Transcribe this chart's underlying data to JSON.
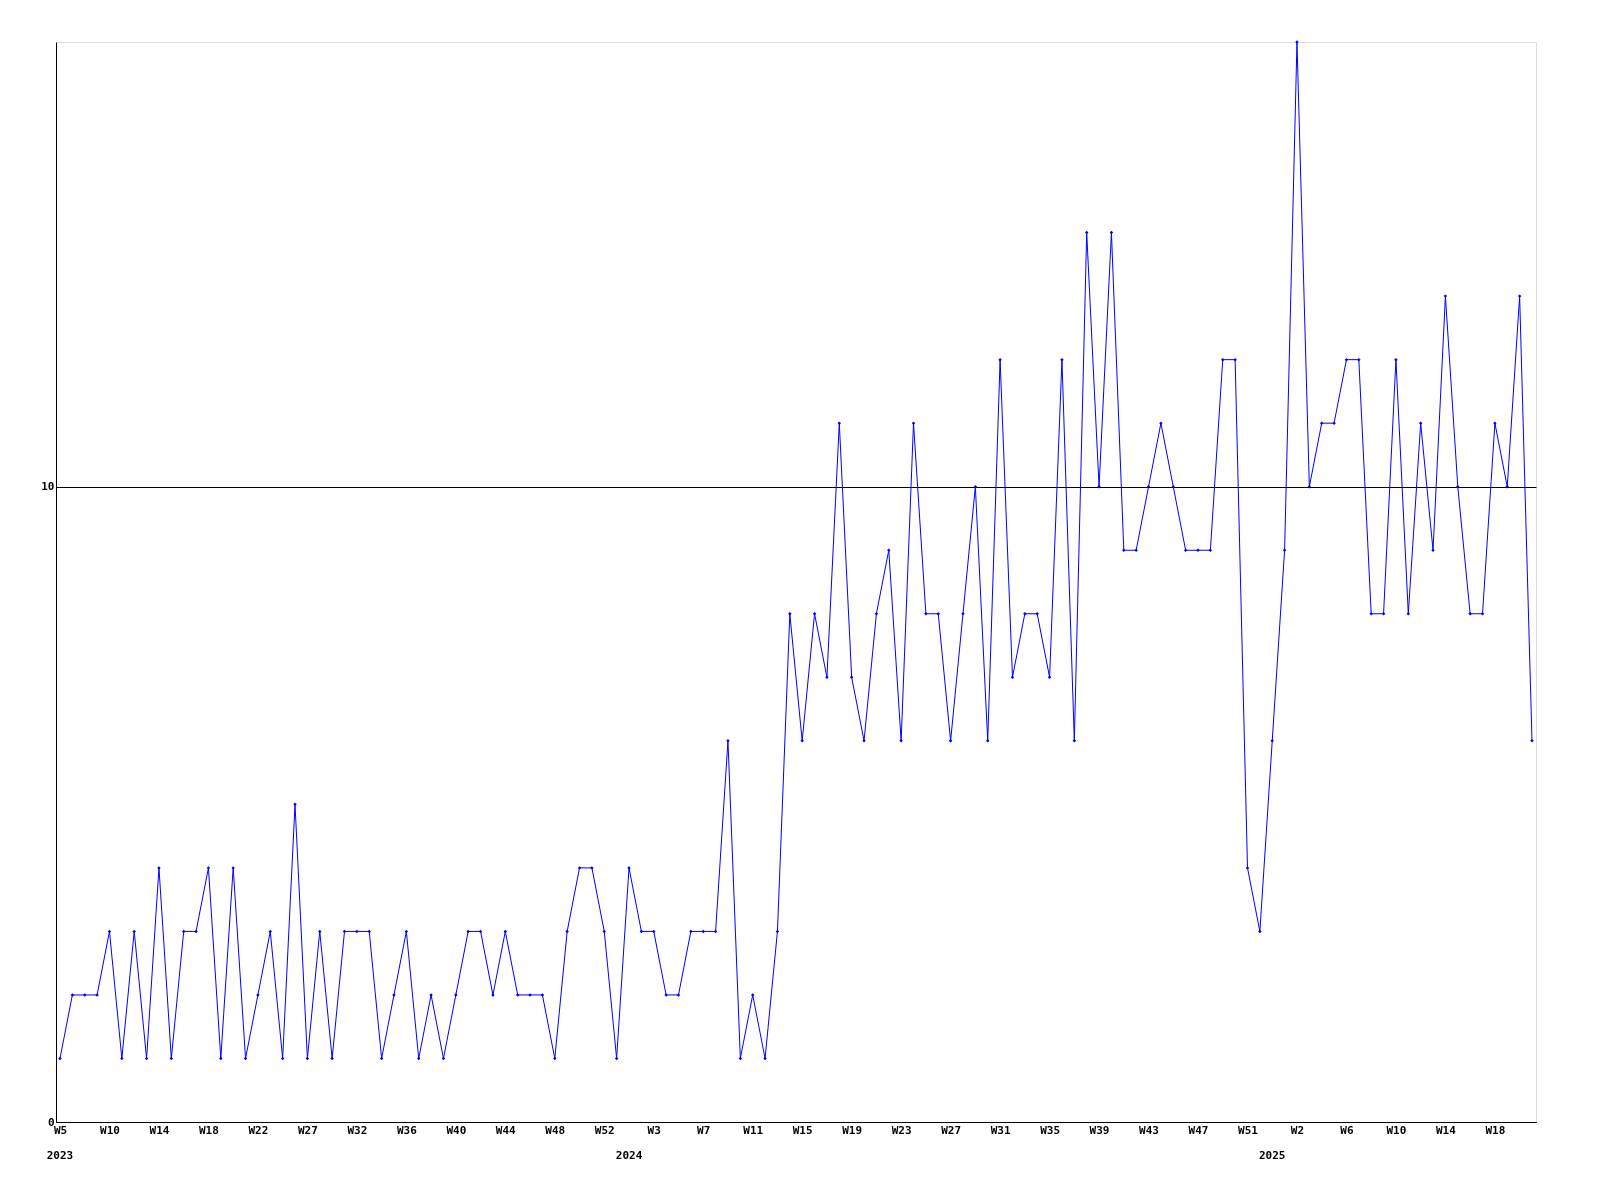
{
  "chart_data": {
    "type": "line",
    "categories": [
      "W5",
      null,
      null,
      null,
      "W10",
      null,
      null,
      null,
      "W14",
      null,
      null,
      null,
      "W18",
      null,
      null,
      null,
      "W22",
      null,
      null,
      null,
      "W27",
      null,
      null,
      null,
      "W32",
      null,
      null,
      null,
      "W36",
      null,
      null,
      null,
      "W40",
      null,
      null,
      null,
      "W44",
      null,
      null,
      null,
      "W48",
      null,
      null,
      null,
      "W52",
      null,
      null,
      null,
      "W3",
      null,
      null,
      null,
      "W7",
      null,
      null,
      null,
      "W11",
      null,
      null,
      null,
      "W15",
      null,
      null,
      null,
      "W19",
      null,
      null,
      null,
      "W23",
      null,
      null,
      null,
      "W27",
      null,
      null,
      null,
      "W31",
      null,
      null,
      null,
      "W35",
      null,
      null,
      null,
      "W39",
      null,
      null,
      null,
      "W43",
      null,
      null,
      null,
      "W47",
      null,
      null,
      null,
      "W51",
      null,
      null,
      null,
      "W2",
      null,
      null,
      null,
      "W6",
      null,
      null,
      null,
      "W10",
      null,
      null,
      null,
      "W14",
      null,
      null,
      null,
      "W18",
      null,
      null,
      null
    ],
    "series": [
      {
        "color": "#0000ff",
        "values": [
          1,
          2,
          2,
          2,
          3,
          1,
          3,
          1,
          4,
          1,
          3,
          3,
          4,
          1,
          4,
          1,
          2,
          3,
          1,
          5,
          1,
          3,
          1,
          3,
          3,
          3,
          1,
          2,
          3,
          1,
          2,
          1,
          2,
          3,
          3,
          2,
          3,
          2,
          2,
          2,
          1,
          3,
          4,
          4,
          3,
          1,
          4,
          3,
          3,
          2,
          2,
          3,
          3,
          3,
          6,
          1,
          2,
          1,
          3,
          8,
          6,
          8,
          7,
          11,
          7,
          6,
          8,
          9,
          6,
          11,
          8,
          8,
          6,
          8,
          10,
          6,
          12,
          7,
          8,
          8,
          7,
          12,
          6,
          14,
          10,
          14,
          9,
          9,
          10,
          11,
          10,
          9,
          9,
          9,
          12,
          12,
          4,
          3,
          6,
          9,
          17,
          10,
          11,
          11,
          12,
          12,
          8,
          8,
          12,
          8,
          11,
          9,
          13,
          10,
          8,
          8,
          11,
          10,
          13,
          6
        ]
      }
    ],
    "ylim": [
      0,
      17
    ],
    "yticks": [
      0,
      10
    ],
    "grid": "y",
    "marker": "diamond",
    "line_style": "solid",
    "annotations": [
      "2023",
      "2024",
      "2025"
    ]
  }
}
